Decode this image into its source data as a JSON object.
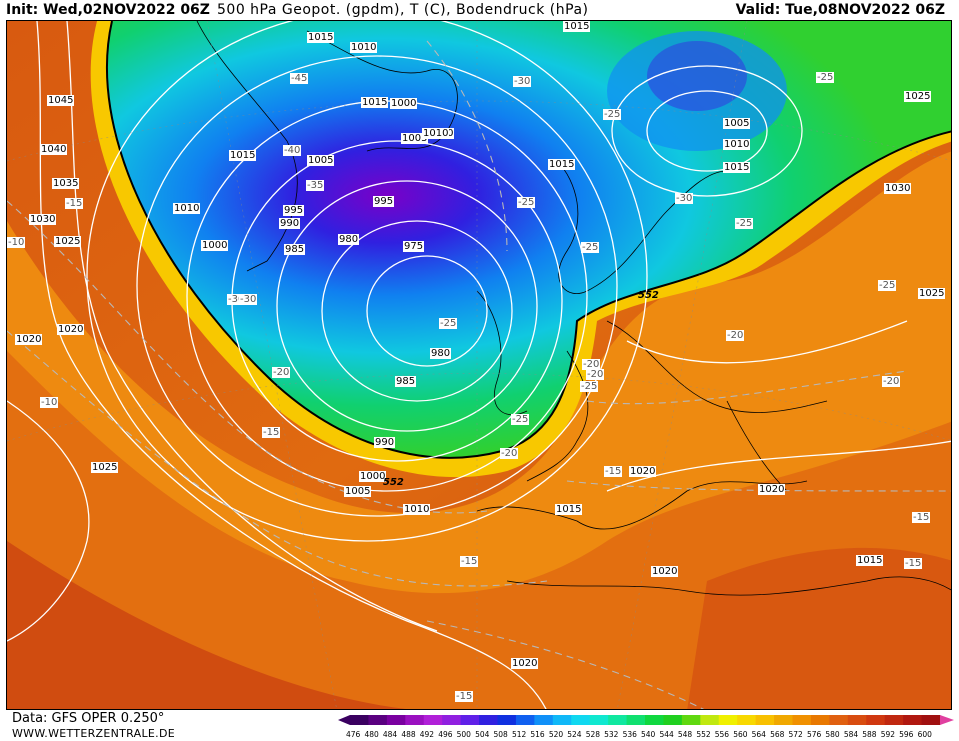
{
  "header": {
    "init": "Init: Wed,02NOV2022 06Z",
    "title": "500 hPa Geopot. (gpdm), T (C), Bodendruck (hPa)",
    "valid": "Valid: Tue,08NOV2022 06Z"
  },
  "footer": {
    "data_source": "Data: GFS OPER 0.250°",
    "website": "WWW.WETTERZENTRALE.DE"
  },
  "colors": {
    "low_center": "#2020d0",
    "trough": "#10d040",
    "ridge": "#f0a000",
    "warm": "#d04010",
    "isobar": "#ffffff",
    "isotherm": "#b0b0b0"
  },
  "map": {
    "pressure_labels": [
      "1045",
      "1040",
      "1035",
      "1030",
      "1025",
      "1020",
      "1020",
      "1025",
      "1015",
      "1010",
      "1010",
      "1000",
      "995",
      "990",
      "985",
      "980",
      "975",
      "980",
      "985",
      "990",
      "995",
      "1000",
      "1005",
      "1010",
      "1015",
      "1015",
      "1020",
      "1020",
      "1020",
      "1020",
      "1015",
      "1015",
      "1010",
      "1005",
      "1030",
      "1025",
      "1005",
      "1015",
      "1010",
      "1000",
      "1005",
      "1010",
      "1015",
      "1025",
      "1015"
    ],
    "temperature_labels": [
      "-15",
      "-10",
      "-10",
      "-15",
      "-30",
      "-20",
      "-15",
      "-15",
      "-45",
      "-40",
      "-35",
      "-25",
      "-20",
      "-25",
      "-30",
      "-25",
      "-25",
      "-25",
      "-25",
      "-30",
      "-25",
      "-25",
      "-20",
      "-20",
      "-20",
      "-25",
      "-20",
      "-15",
      "-15",
      "-15",
      "-30"
    ],
    "geopotential_labels": [
      "552",
      "552"
    ]
  },
  "legend": {
    "unit": "gpdm",
    "levels": [
      "476",
      "480",
      "484",
      "488",
      "492",
      "496",
      "500",
      "504",
      "508",
      "512",
      "516",
      "520",
      "524",
      "528",
      "532",
      "536",
      "540",
      "544",
      "548",
      "552",
      "556",
      "560",
      "564",
      "568",
      "572",
      "576",
      "580",
      "584",
      "588",
      "592",
      "596",
      "600"
    ],
    "colors": [
      "#3a0060",
      "#5a0080",
      "#7a00a0",
      "#9a10c0",
      "#b020d8",
      "#9020e0",
      "#6020e8",
      "#3020e0",
      "#1030e0",
      "#1060f0",
      "#1090f8",
      "#10b8f8",
      "#10d8f0",
      "#10e8d0",
      "#10e8a0",
      "#10e070",
      "#10d840",
      "#20d020",
      "#60d810",
      "#c0e810",
      "#f0f000",
      "#f8d800",
      "#f8c000",
      "#f0a800",
      "#f09000",
      "#e87800",
      "#e06010",
      "#d84c10",
      "#d03810",
      "#c02810",
      "#b01810",
      "#a01010"
    ]
  }
}
